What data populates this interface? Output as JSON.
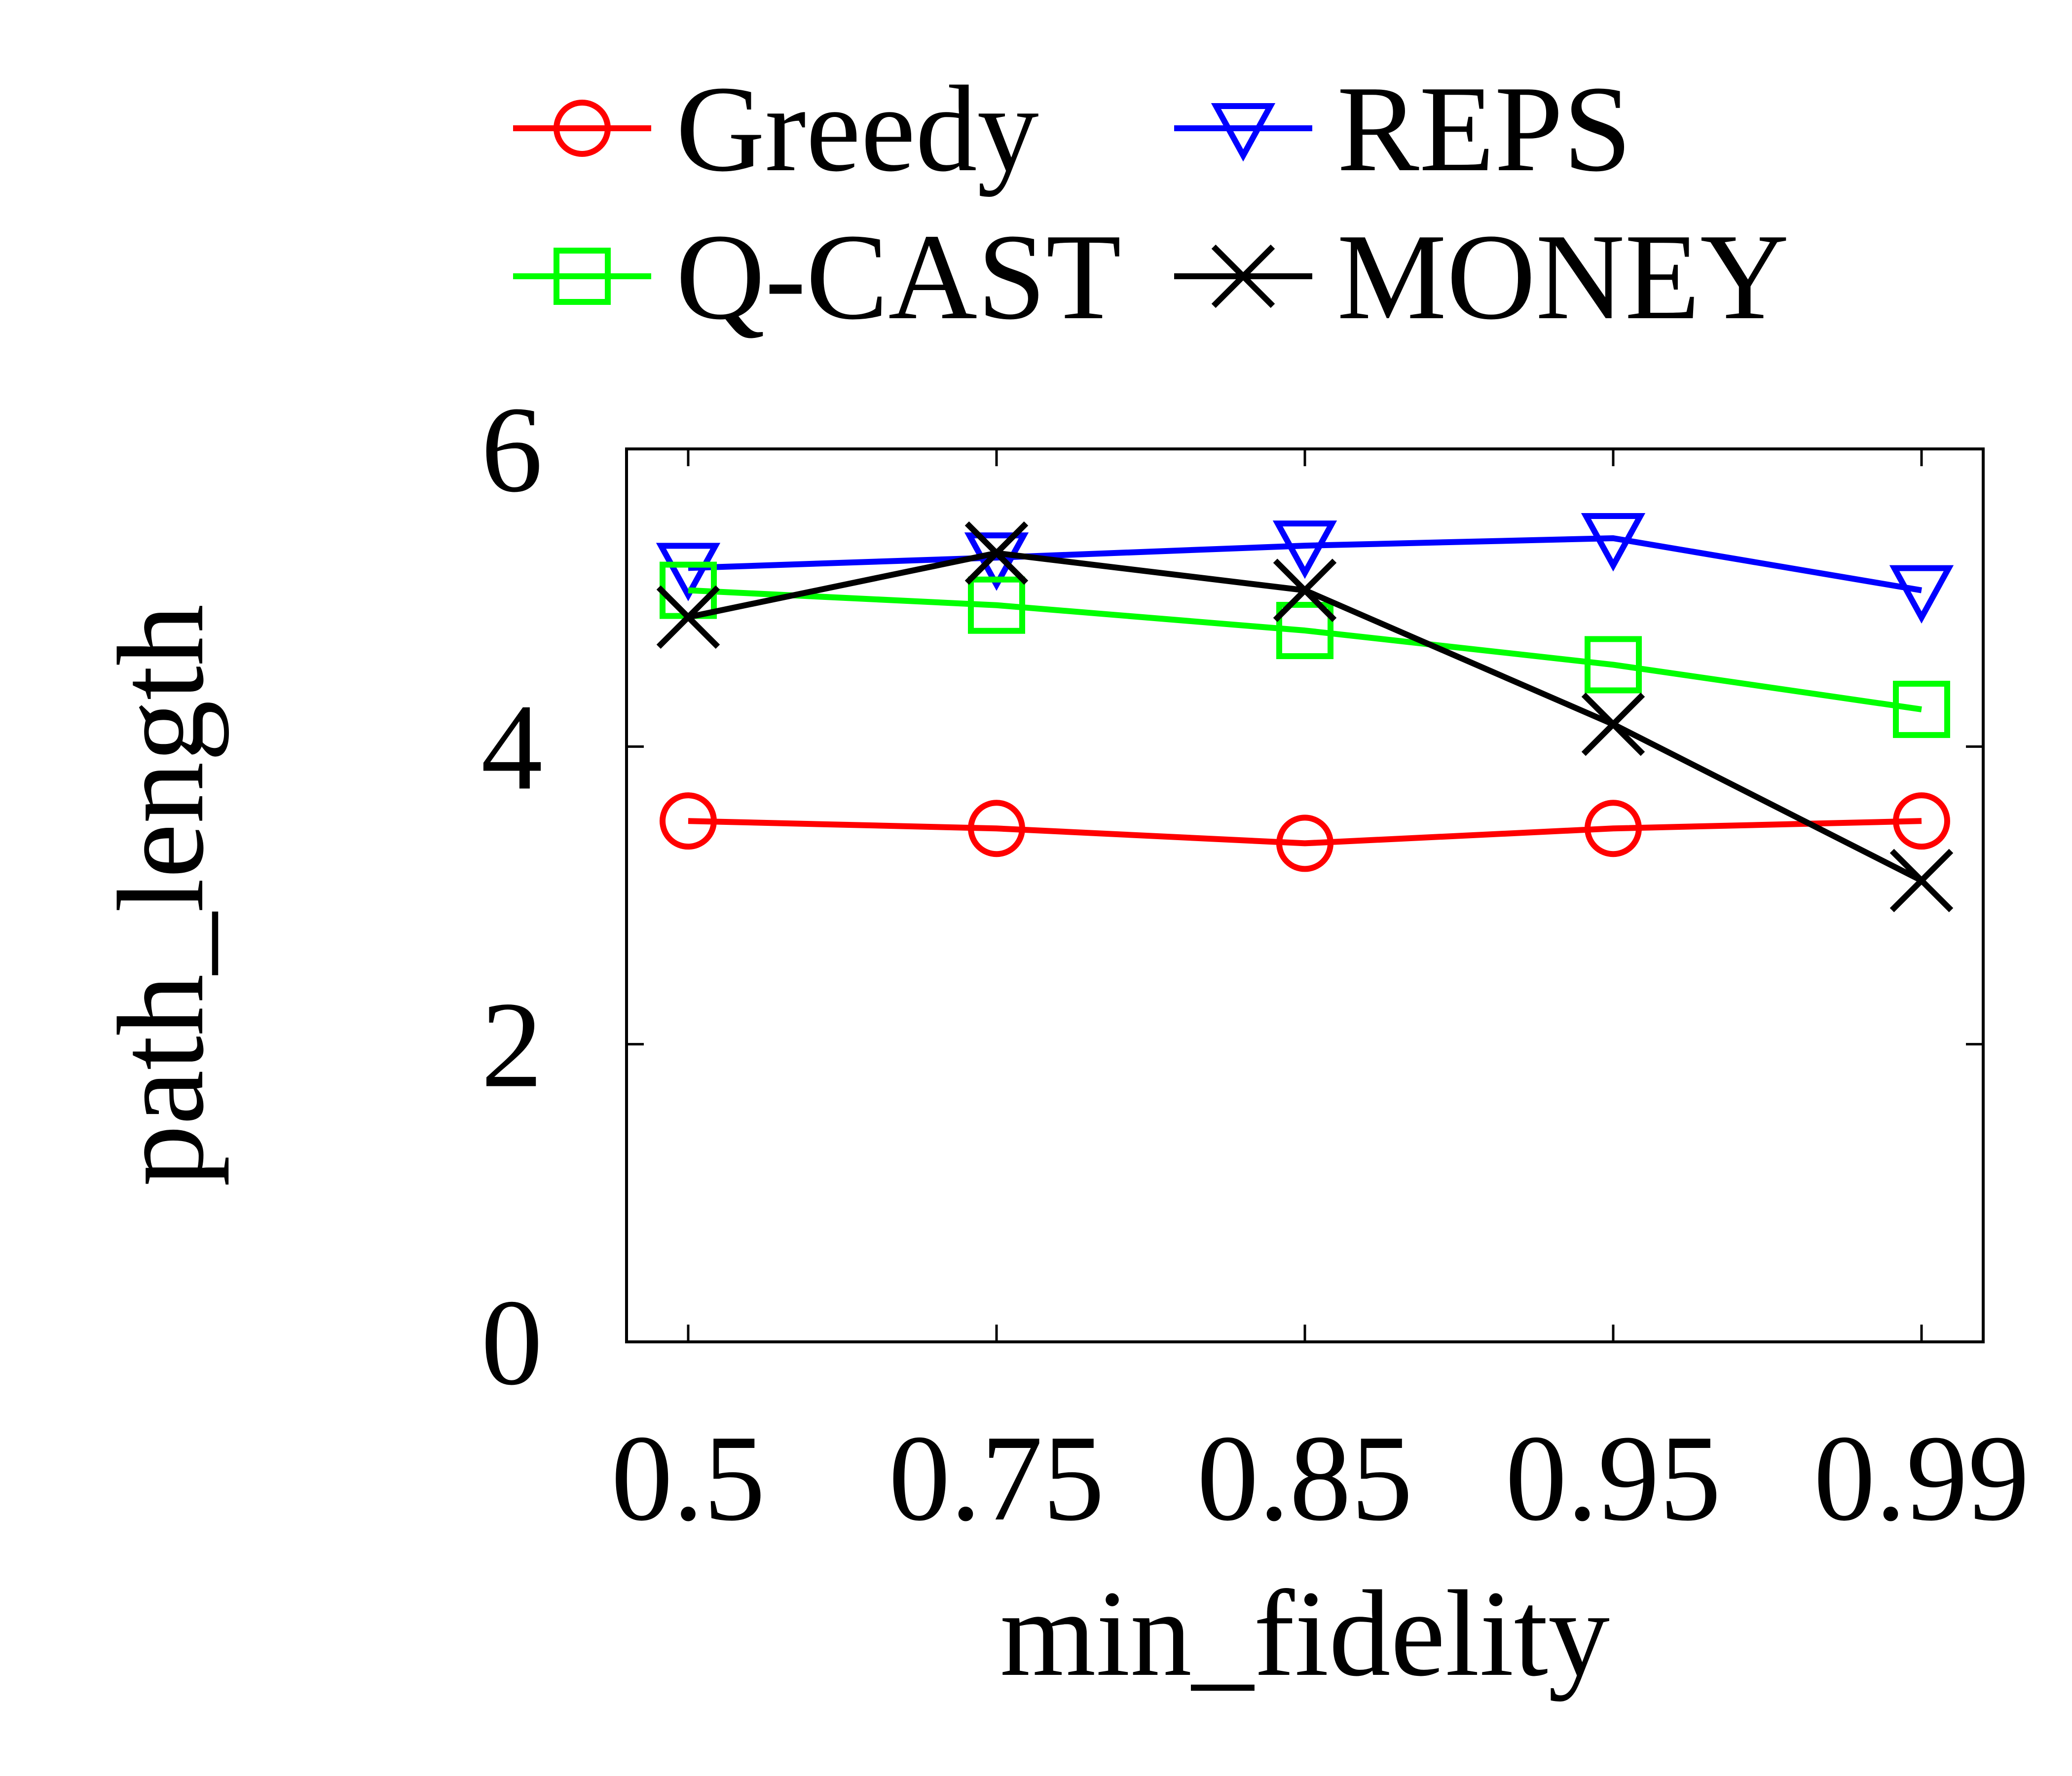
{
  "chart_data": {
    "type": "line",
    "title": "",
    "xlabel": "min_fidelity",
    "ylabel": "path_length",
    "categories": [
      "0.5",
      "0.75",
      "0.85",
      "0.95",
      "0.99"
    ],
    "ylim": [
      0,
      6
    ],
    "yticks": [
      "0",
      "2",
      "4",
      "6"
    ],
    "grid": false,
    "legend_position": "top",
    "series": [
      {
        "name": "Greedy",
        "color": "#ff0000",
        "marker": "circle",
        "values": [
          3.5,
          3.45,
          3.35,
          3.45,
          3.5
        ]
      },
      {
        "name": "REPS",
        "color": "#0000ff",
        "marker": "triangle-down",
        "values": [
          5.2,
          5.27,
          5.35,
          5.4,
          5.05
        ]
      },
      {
        "name": "Q-CAST",
        "color": "#00ff00",
        "marker": "square",
        "values": [
          5.05,
          4.95,
          4.78,
          4.55,
          4.25
        ]
      },
      {
        "name": "MONEY",
        "color": "#000000",
        "marker": "x",
        "values": [
          4.87,
          5.3,
          5.05,
          4.15,
          3.1
        ]
      }
    ]
  }
}
